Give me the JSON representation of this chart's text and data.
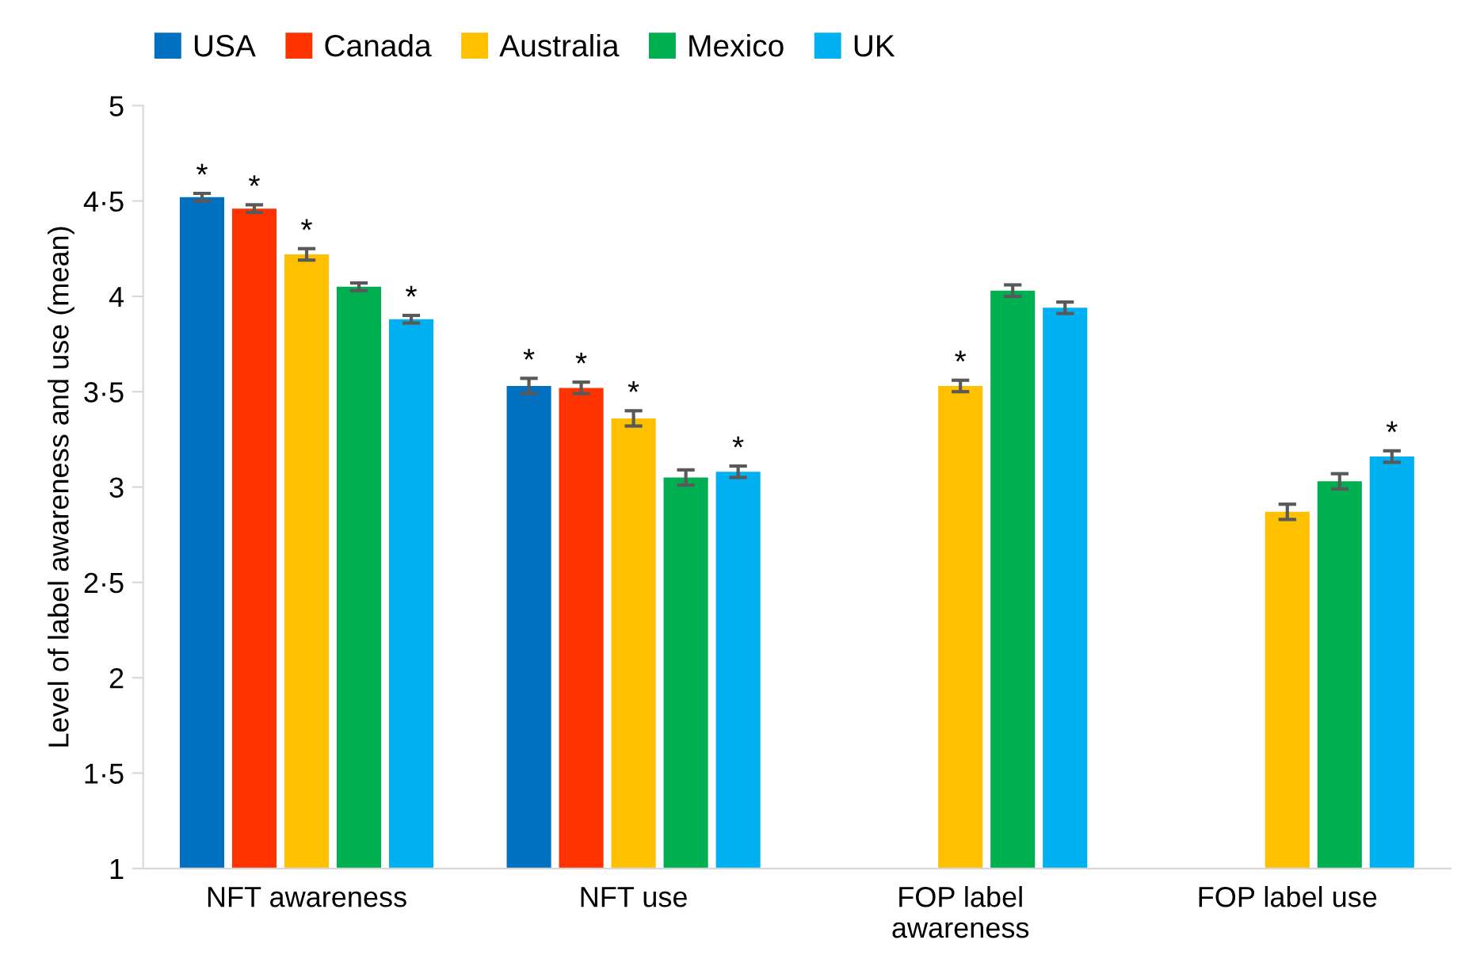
{
  "chart_data": {
    "type": "bar",
    "ylabel": "Level of label awareness and use (mean)",
    "categories": [
      "NFT awareness",
      "NFT use",
      "FOP label\nawareness",
      "FOP label use"
    ],
    "series": [
      {
        "name": "USA",
        "color": "#0070c0",
        "values": [
          4.52,
          3.53,
          null,
          null
        ],
        "errors": [
          0.02,
          0.04,
          null,
          null
        ],
        "value_labels": [
          "*",
          "*",
          null,
          null
        ]
      },
      {
        "name": "Canada",
        "color": "#ff3300",
        "values": [
          4.46,
          3.52,
          null,
          null
        ],
        "errors": [
          0.02,
          0.03,
          null,
          null
        ],
        "value_labels": [
          "*",
          "*",
          null,
          null
        ]
      },
      {
        "name": "Australia",
        "color": "#ffc000",
        "values": [
          4.22,
          3.36,
          3.53,
          2.87
        ],
        "errors": [
          0.03,
          0.04,
          0.03,
          0.04
        ],
        "value_labels": [
          "*",
          "*",
          "*",
          null
        ]
      },
      {
        "name": "Mexico",
        "color": "#00b050",
        "values": [
          4.05,
          3.05,
          4.03,
          3.03
        ],
        "errors": [
          0.02,
          0.04,
          0.03,
          0.04
        ],
        "value_labels": [
          null,
          null,
          null,
          null
        ]
      },
      {
        "name": "UK",
        "color": "#00b0f0",
        "values": [
          3.88,
          3.08,
          3.94,
          3.16
        ],
        "errors": [
          0.02,
          0.03,
          0.03,
          0.03
        ],
        "value_labels": [
          "*",
          "*",
          null,
          "*"
        ]
      }
    ],
    "ylim": [
      1,
      5
    ],
    "yticks": [
      1,
      {
        "value": 1.5,
        "label": "1·5"
      },
      2,
      {
        "value": 2.5,
        "label": "2·5"
      },
      3,
      {
        "value": 3.5,
        "label": "3·5"
      },
      4,
      {
        "value": 4.5,
        "label": "4·5"
      },
      5
    ],
    "grid": false,
    "legend": "top"
  }
}
